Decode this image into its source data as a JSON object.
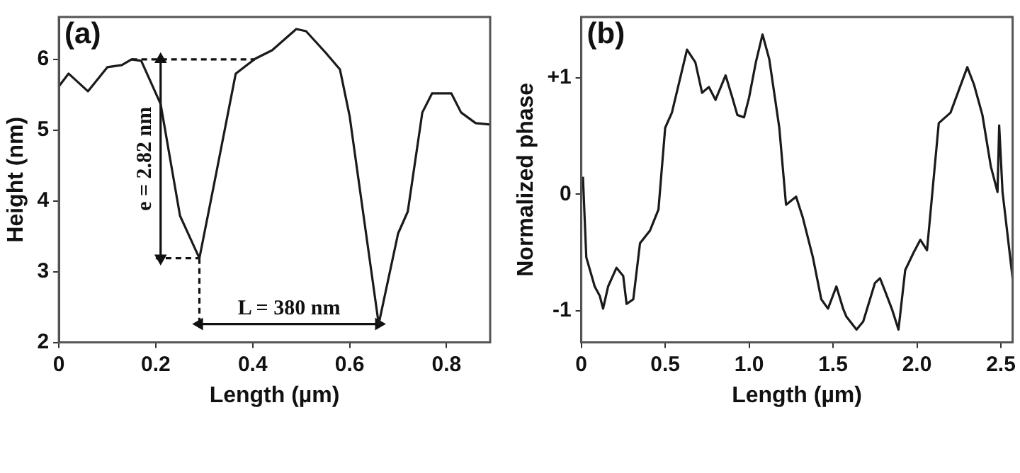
{
  "chart_data": [
    {
      "type": "line",
      "title": "(a)",
      "xlabel": "Length (µm)",
      "ylabel": "Height (nm)",
      "xlim": [
        0,
        0.89
      ],
      "ylim": [
        2,
        6.6
      ],
      "xticks": [
        0,
        0.2,
        0.4,
        0.6,
        0.8
      ],
      "yticks": [
        2,
        3,
        4,
        5,
        6
      ],
      "x": [
        0,
        0.02,
        0.06,
        0.1,
        0.13,
        0.15,
        0.17,
        0.21,
        0.25,
        0.29,
        0.325,
        0.365,
        0.405,
        0.44,
        0.49,
        0.51,
        0.55,
        0.58,
        0.6,
        0.66,
        0.7,
        0.72,
        0.75,
        0.77,
        0.81,
        0.83,
        0.86,
        0.89
      ],
      "series": [
        {
          "color": "#1a1a1a",
          "values": [
            5.62,
            5.8,
            5.55,
            5.89,
            5.92,
            6.0,
            5.98,
            5.37,
            3.79,
            3.19,
            4.4,
            5.8,
            6.01,
            6.13,
            6.43,
            6.4,
            6.1,
            5.86,
            5.2,
            2.26,
            3.54,
            3.85,
            5.25,
            5.52,
            5.52,
            5.25,
            5.1,
            5.08
          ]
        },
        {
          "color": "#111111",
          "marker": "triangle",
          "x": [
            0.21,
            0.21
          ],
          "values": [
            6.0,
            3.19
          ]
        },
        {
          "color": "#111111",
          "marker": "triangle",
          "x": [
            0.29,
            0.66
          ],
          "values": [
            2.26,
            2.26
          ]
        },
        {
          "color": "#111111",
          "line_style": "dashed",
          "x": [
            0.15,
            0.405
          ],
          "values": [
            6.0,
            6.0
          ]
        },
        {
          "color": "#111111",
          "line_style": "dashed",
          "x": [
            0.2,
            0.29
          ],
          "values": [
            3.19,
            3.19
          ]
        },
        {
          "color": "#111111",
          "line_style": "dashed",
          "x": [
            0.29,
            0.29
          ],
          "values": [
            3.19,
            2.26
          ]
        }
      ],
      "annotations": [
        "e = 2.82 nm",
        "L = 380 nm"
      ]
    },
    {
      "type": "line",
      "title": "(b)",
      "xlabel": "Length (µm)",
      "ylabel": "Normalized phase",
      "xlim": [
        0,
        2.57
      ],
      "ylim": [
        -1.27,
        1.52
      ],
      "xticks": [
        0,
        0.5,
        {
          "value": 1,
          "label": "1.0"
        },
        1.5,
        {
          "value": 2,
          "label": "2.0"
        },
        2.5
      ],
      "yticks": [
        -1,
        0,
        {
          "value": 1,
          "label": "+1"
        }
      ],
      "x": [
        0.01,
        0.03,
        0.08,
        0.11,
        0.13,
        0.16,
        0.21,
        0.25,
        0.27,
        0.31,
        0.35,
        0.41,
        0.46,
        0.5,
        0.54,
        0.58,
        0.63,
        0.68,
        0.72,
        0.76,
        0.8,
        0.86,
        0.9,
        0.93,
        0.97,
        1.0,
        1.04,
        1.08,
        1.12,
        1.18,
        1.22,
        1.28,
        1.32,
        1.38,
        1.43,
        1.47,
        1.52,
        1.56,
        1.58,
        1.64,
        1.68,
        1.75,
        1.78,
        1.81,
        1.85,
        1.89,
        1.93,
        1.98,
        2.02,
        2.06,
        2.13,
        2.2,
        2.3,
        2.34,
        2.39,
        2.44,
        2.48,
        2.49,
        2.51,
        2.57
      ],
      "series": [
        {
          "color": "#1a1a1a",
          "values": [
            0.15,
            -0.54,
            -0.79,
            -0.87,
            -0.98,
            -0.79,
            -0.63,
            -0.7,
            -0.94,
            -0.9,
            -0.42,
            -0.31,
            -0.13,
            0.57,
            0.7,
            0.94,
            1.24,
            1.13,
            0.87,
            0.92,
            0.81,
            1.02,
            0.83,
            0.68,
            0.66,
            0.83,
            1.13,
            1.37,
            1.16,
            0.57,
            -0.09,
            -0.02,
            -0.2,
            -0.54,
            -0.9,
            -0.98,
            -0.79,
            -0.98,
            -1.05,
            -1.16,
            -1.09,
            -0.76,
            -0.72,
            -0.83,
            -0.98,
            -1.16,
            -0.65,
            -0.5,
            -0.39,
            -0.48,
            0.61,
            0.7,
            1.09,
            0.94,
            0.68,
            0.24,
            0.02,
            0.59,
            0.02,
            -0.72
          ]
        }
      ]
    }
  ]
}
